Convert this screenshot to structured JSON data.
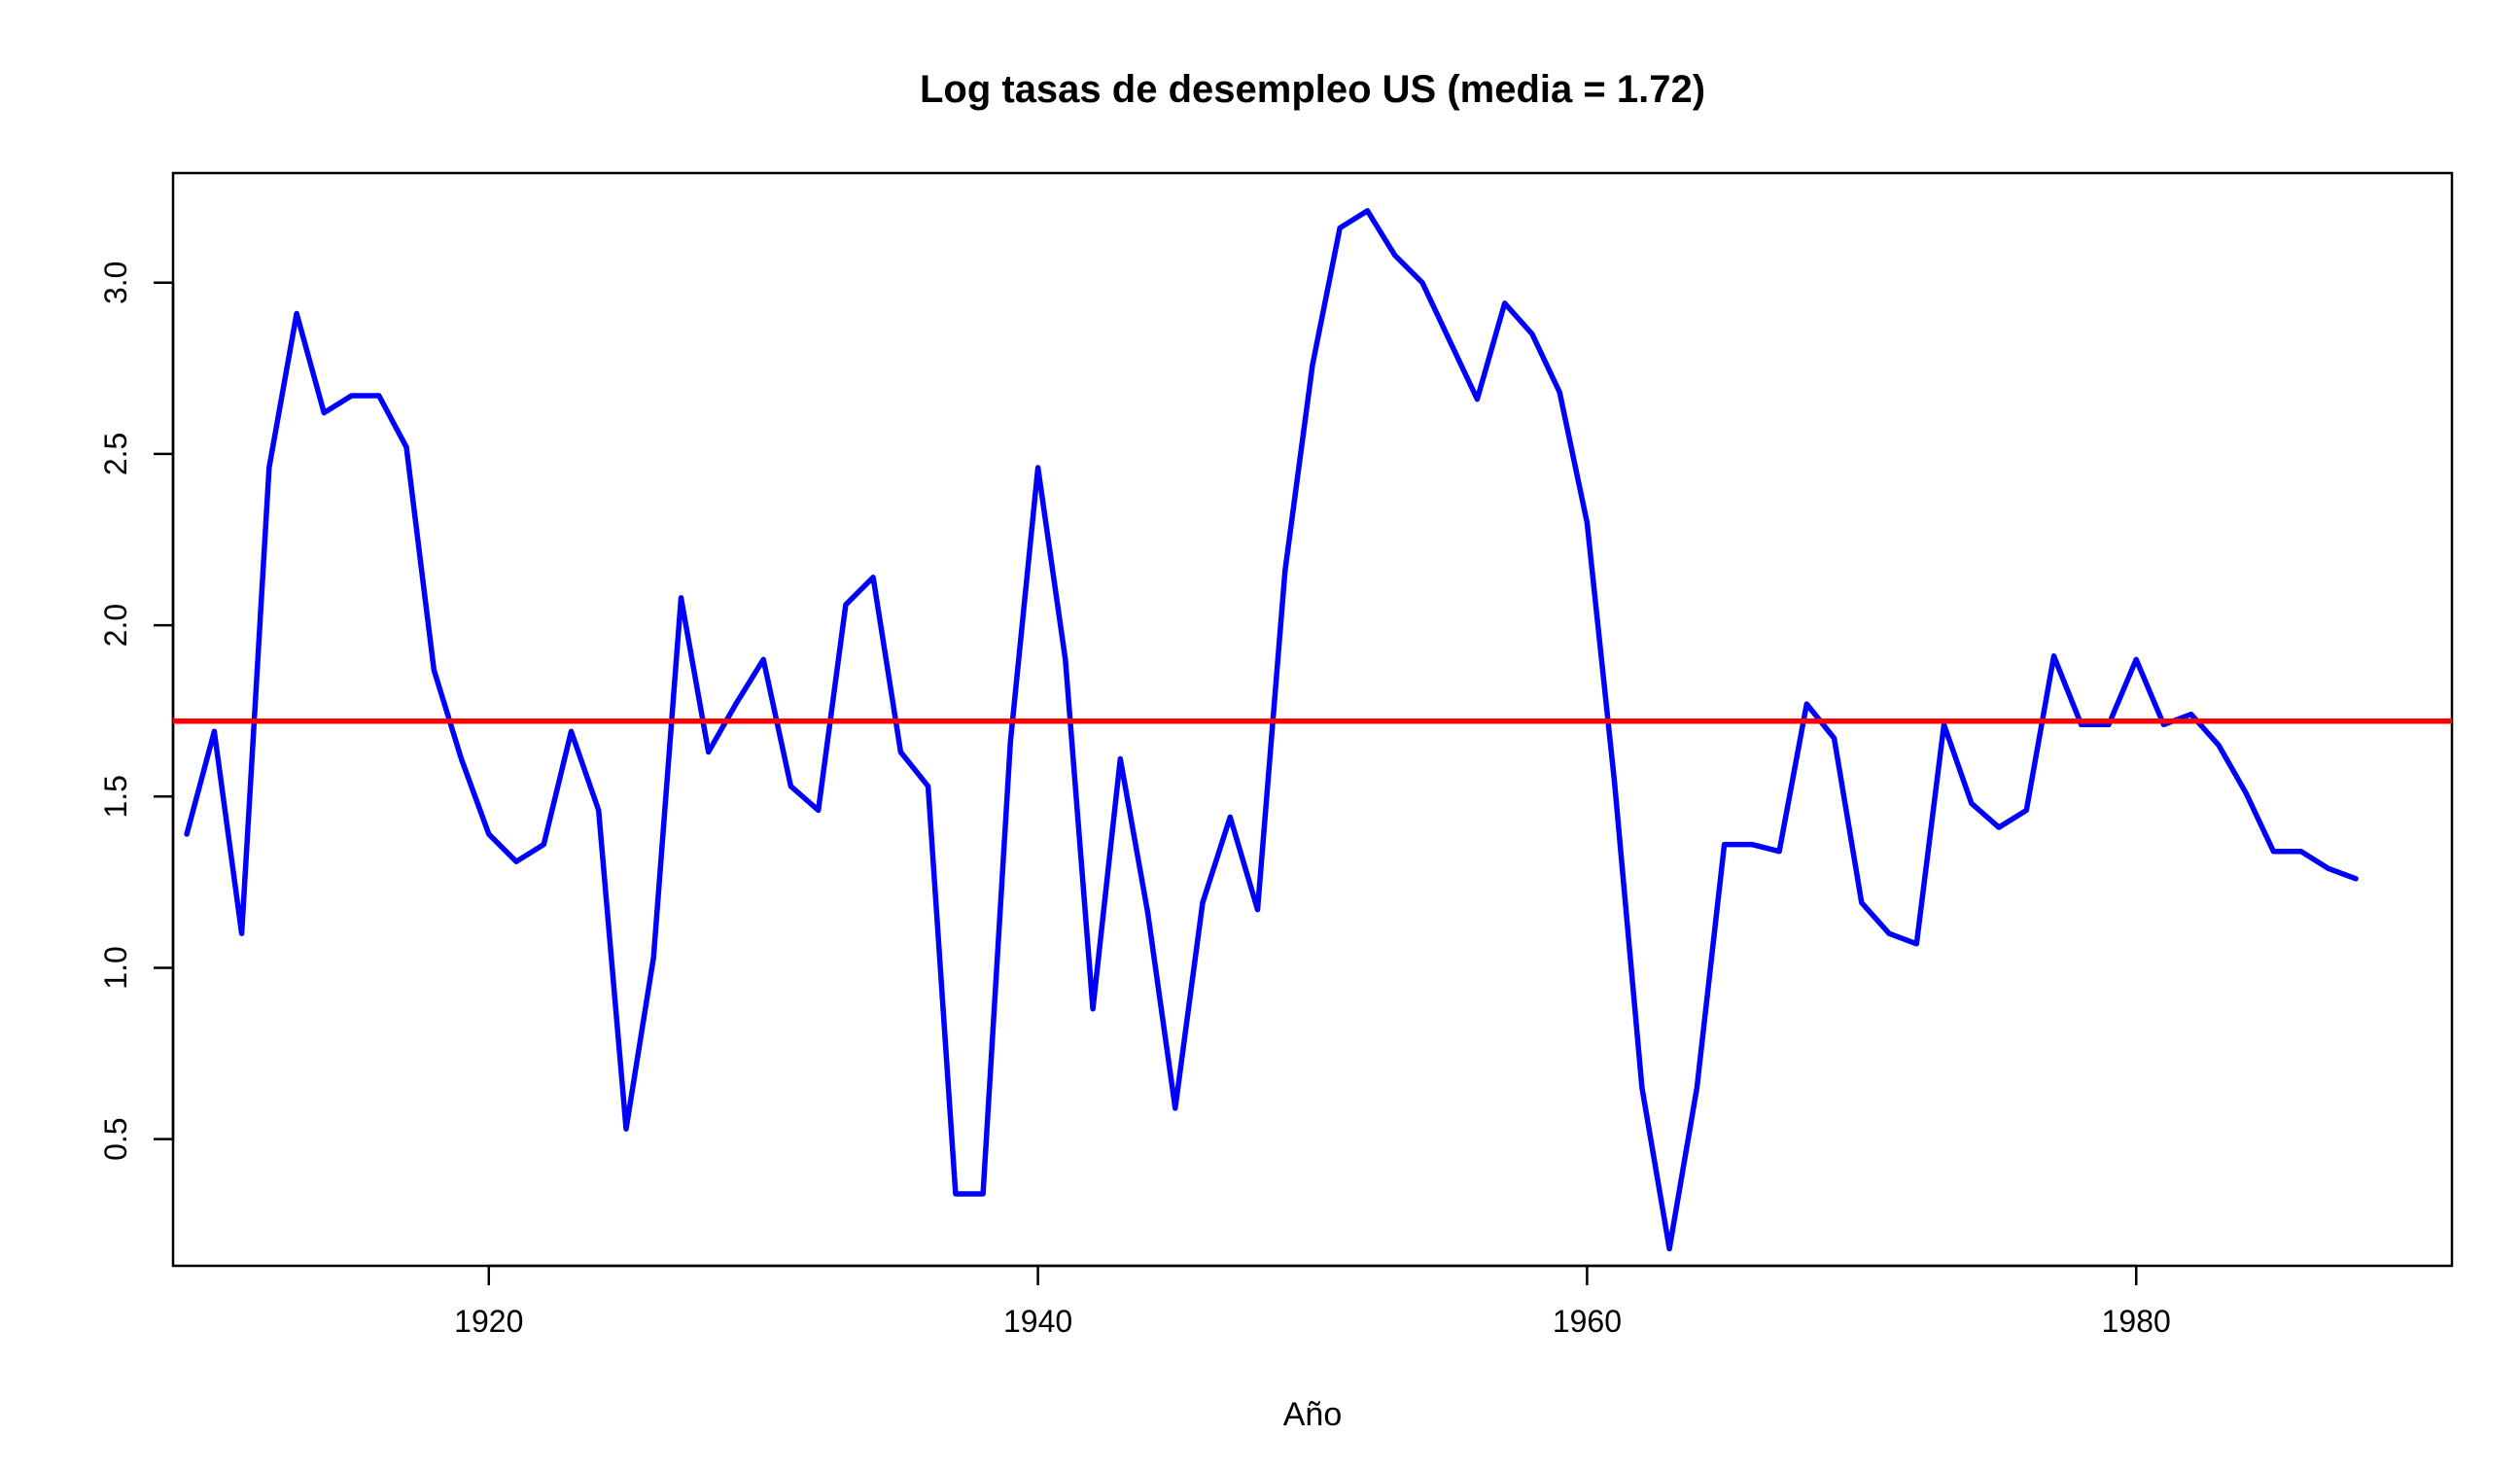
{
  "chart_data": {
    "type": "line",
    "title": "Log tasas de desempleo US (media = 1.72)",
    "xlabel": "Año",
    "ylabel": "",
    "xlim": [
      1908.5,
      1991.5
    ],
    "ylim": [
      0.13,
      3.32
    ],
    "x_ticks": [
      1920,
      1940,
      1960,
      1980
    ],
    "y_ticks": [
      0.5,
      1.0,
      1.5,
      2.0,
      2.5,
      3.0
    ],
    "x_tick_labels": [
      "1920",
      "1940",
      "1960",
      "1980"
    ],
    "y_tick_labels": [
      "0.5",
      "1.0",
      "1.5",
      "2.0",
      "2.5",
      "3.0"
    ],
    "grid": false,
    "legend": "none",
    "series": [
      {
        "color": "#0000ff",
        "x": [
          1909,
          1910,
          1911,
          1912,
          1913,
          1914,
          1915,
          1916,
          1917,
          1918,
          1919,
          1920,
          1921,
          1922,
          1923,
          1924,
          1925,
          1926,
          1927,
          1928,
          1929,
          1930,
          1931,
          1932,
          1933,
          1934,
          1935,
          1936,
          1937,
          1938,
          1939,
          1940,
          1941,
          1942,
          1943,
          1944,
          1945,
          1946,
          1947,
          1948,
          1949,
          1950,
          1951,
          1952,
          1953,
          1954,
          1955,
          1956,
          1957,
          1958,
          1959,
          1960,
          1961,
          1962,
          1963,
          1964,
          1965,
          1966,
          1967,
          1968,
          1969,
          1970,
          1971,
          1972,
          1973,
          1974,
          1975,
          1976,
          1977,
          1978,
          1979,
          1980,
          1981,
          1982,
          1983,
          1984,
          1985,
          1986,
          1987,
          1988
        ],
        "values": [
          1.39,
          1.69,
          1.1,
          2.46,
          2.91,
          2.62,
          2.67,
          2.67,
          2.52,
          1.87,
          1.61,
          1.39,
          1.31,
          1.36,
          1.69,
          1.46,
          0.53,
          1.03,
          2.08,
          1.63,
          1.77,
          1.9,
          1.53,
          1.46,
          2.06,
          2.14,
          1.63,
          1.53,
          0.34,
          0.34,
          1.66,
          2.46,
          1.9,
          0.88,
          1.61,
          1.16,
          0.59,
          1.19,
          1.44,
          1.17,
          2.16,
          2.76,
          3.16,
          3.21,
          3.08,
          3.0,
          2.83,
          2.66,
          2.94,
          2.85,
          2.68,
          2.3,
          1.54,
          0.65,
          0.18,
          0.65,
          1.36,
          1.36,
          1.34,
          1.77,
          1.67,
          1.19,
          1.1,
          1.07,
          1.71,
          1.48,
          1.41,
          1.46,
          1.91,
          1.71,
          1.71,
          1.9,
          1.71,
          1.74,
          1.65,
          1.51,
          1.34,
          1.34,
          1.29,
          1.26
        ]
      }
    ],
    "hline": {
      "y": 1.72,
      "color": "#ff0000"
    }
  }
}
